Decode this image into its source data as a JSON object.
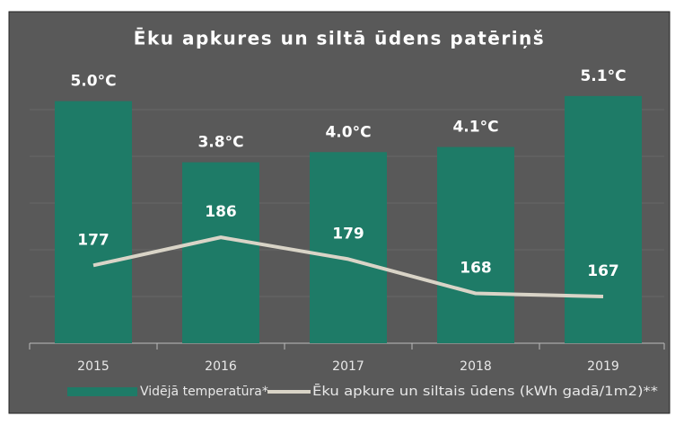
{
  "chart_data": {
    "type": "bar+line",
    "title": "Ēku apkures un siltā ūdens patēriņš",
    "categories": [
      "2015",
      "2016",
      "2017",
      "2018",
      "2019"
    ],
    "series": [
      {
        "name": "Vidējā temperatūra*",
        "type": "bar",
        "color": "#1e7b67",
        "values": [
          5.0,
          3.8,
          4.0,
          4.1,
          5.1
        ],
        "value_labels": [
          "5.0°C",
          "3.8°C",
          "4.0°C",
          "4.1°C",
          "5.1°C"
        ]
      },
      {
        "name": "Ēku apkure un siltais ūdens (kWh gadā/1m2)**",
        "type": "line",
        "axis": "y2",
        "color": "#d9d4c7",
        "values": [
          177,
          186,
          179,
          168,
          167
        ]
      }
    ],
    "ylim": [
      0.25,
      5.75
    ],
    "y2lim": [
      152,
      242
    ],
    "y2ticks": [
      167,
      182,
      197,
      212,
      227
    ],
    "grid": true,
    "legend": "bottom"
  }
}
